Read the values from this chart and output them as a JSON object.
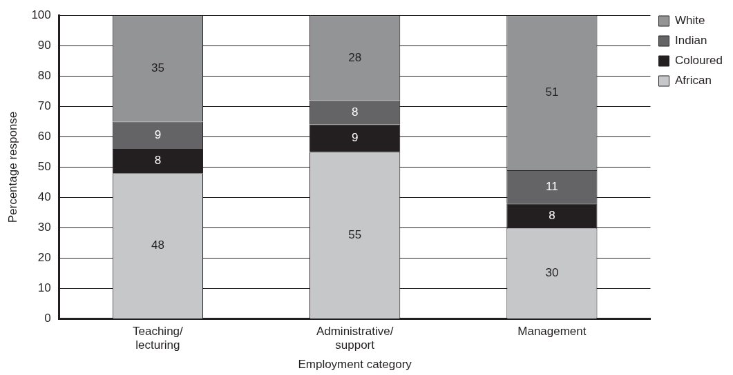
{
  "chart_data": {
    "type": "bar",
    "stacked": true,
    "xlabel": "Employment category",
    "ylabel": "Percentage response",
    "categories": [
      "Teaching/ lecturing",
      "Administrative/ support",
      "Management"
    ],
    "series": [
      {
        "name": "African",
        "color": "#c6c7c9",
        "values": [
          48,
          55,
          30
        ]
      },
      {
        "name": "Coloured",
        "color": "#231f20",
        "values": [
          8,
          9,
          8
        ]
      },
      {
        "name": "Indian",
        "color": "#646466",
        "values": [
          9,
          8,
          11
        ]
      },
      {
        "name": "White",
        "color": "#939496",
        "values": [
          35,
          28,
          51
        ]
      }
    ],
    "ylim": [
      0,
      100
    ],
    "yticks": [
      0,
      10,
      20,
      30,
      40,
      50,
      60,
      70,
      80,
      90,
      100
    ],
    "grid": "y",
    "legend": "top right",
    "data_labels": true
  }
}
